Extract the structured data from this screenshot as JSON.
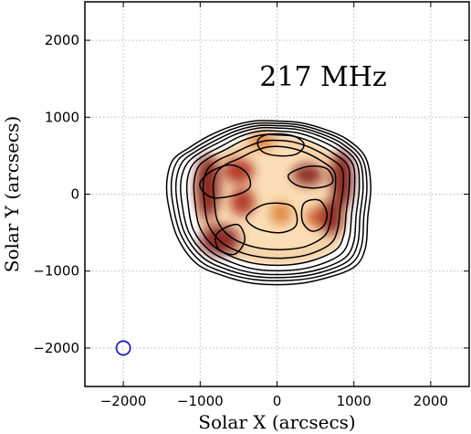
{
  "chart_data": {
    "type": "heatmap",
    "title": "",
    "annotation": "217 MHz",
    "xlabel": "Solar X (arcsecs)",
    "ylabel": "Solar Y (arcsecs)",
    "xlim": [
      -2500,
      2500
    ],
    "ylim": [
      -2500,
      2500
    ],
    "x_ticks": [
      -2000,
      -1000,
      0,
      1000,
      2000
    ],
    "y_ticks": [
      -2000,
      -1000,
      0,
      1000,
      2000
    ],
    "x_tick_labels": [
      "−2000",
      "−1000",
      "0",
      "1000",
      "2000"
    ],
    "y_tick_labels": [
      "−2000",
      "−1000",
      "0",
      "1000",
      "2000"
    ],
    "grid": true,
    "colormap": "gist_heat_r",
    "contour_color": "#000000",
    "beam": {
      "x": -2000,
      "y": -2000,
      "radius": 90,
      "color": "#1f1fcc"
    },
    "emission_peaks": [
      {
        "x": -900,
        "y": 100,
        "w": 160,
        "h": 420,
        "level": 1.0
      },
      {
        "x": -750,
        "y": -600,
        "w": 260,
        "h": 200,
        "level": 1.0
      },
      {
        "x": -500,
        "y": 300,
        "w": 200,
        "h": 160,
        "level": 0.85
      },
      {
        "x": -450,
        "y": -100,
        "w": 160,
        "h": 180,
        "level": 0.9
      },
      {
        "x": 400,
        "y": 250,
        "w": 200,
        "h": 140,
        "level": 0.95
      },
      {
        "x": 850,
        "y": 200,
        "w": 150,
        "h": 380,
        "level": 1.0
      },
      {
        "x": 700,
        "y": -300,
        "w": 160,
        "h": 220,
        "level": 0.95
      },
      {
        "x": 500,
        "y": -300,
        "w": 120,
        "h": 120,
        "level": 0.8
      },
      {
        "x": 50,
        "y": -250,
        "w": 140,
        "h": 140,
        "level": 0.7
      },
      {
        "x": -200,
        "y": 700,
        "w": 160,
        "h": 120,
        "level": 0.6
      }
    ],
    "contours": [
      [
        [
          -1420,
          -100
        ],
        [
          -1430,
          200
        ],
        [
          -1350,
          450
        ],
        [
          -1150,
          600
        ],
        [
          -900,
          750
        ],
        [
          -600,
          880
        ],
        [
          -300,
          950
        ],
        [
          0,
          950
        ],
        [
          300,
          930
        ],
        [
          600,
          850
        ],
        [
          900,
          720
        ],
        [
          1150,
          480
        ],
        [
          1220,
          100
        ],
        [
          1180,
          -300
        ],
        [
          1150,
          -700
        ],
        [
          1000,
          -950
        ],
        [
          600,
          -1100
        ],
        [
          200,
          -1170
        ],
        [
          -300,
          -1160
        ],
        [
          -700,
          -1060
        ],
        [
          -1050,
          -900
        ],
        [
          -1300,
          -550
        ]
      ],
      [
        [
          -1360,
          -100
        ],
        [
          -1370,
          200
        ],
        [
          -1290,
          440
        ],
        [
          -1100,
          580
        ],
        [
          -860,
          720
        ],
        [
          -570,
          850
        ],
        [
          -280,
          920
        ],
        [
          0,
          920
        ],
        [
          290,
          900
        ],
        [
          580,
          820
        ],
        [
          870,
          690
        ],
        [
          1110,
          460
        ],
        [
          1170,
          100
        ],
        [
          1130,
          -290
        ],
        [
          1100,
          -670
        ],
        [
          960,
          -910
        ],
        [
          580,
          -1060
        ],
        [
          190,
          -1120
        ],
        [
          -290,
          -1110
        ],
        [
          -680,
          -1020
        ],
        [
          -1010,
          -860
        ],
        [
          -1250,
          -530
        ]
      ],
      [
        [
          -1300,
          -100
        ],
        [
          -1310,
          190
        ],
        [
          -1230,
          420
        ],
        [
          -1050,
          560
        ],
        [
          -820,
          690
        ],
        [
          -540,
          820
        ],
        [
          -260,
          890
        ],
        [
          0,
          890
        ],
        [
          280,
          870
        ],
        [
          560,
          790
        ],
        [
          840,
          660
        ],
        [
          1070,
          440
        ],
        [
          1120,
          100
        ],
        [
          1080,
          -280
        ],
        [
          1050,
          -640
        ],
        [
          920,
          -870
        ],
        [
          560,
          -1020
        ],
        [
          180,
          -1080
        ],
        [
          -280,
          -1070
        ],
        [
          -650,
          -980
        ],
        [
          -970,
          -820
        ],
        [
          -1200,
          -510
        ]
      ],
      [
        [
          -1240,
          -100
        ],
        [
          -1250,
          180
        ],
        [
          -1170,
          400
        ],
        [
          -1000,
          540
        ],
        [
          -780,
          660
        ],
        [
          -510,
          790
        ],
        [
          -240,
          860
        ],
        [
          0,
          860
        ],
        [
          270,
          840
        ],
        [
          540,
          760
        ],
        [
          810,
          630
        ],
        [
          1030,
          420
        ],
        [
          1070,
          100
        ],
        [
          1030,
          -270
        ],
        [
          1000,
          -610
        ],
        [
          880,
          -830
        ],
        [
          540,
          -980
        ],
        [
          170,
          -1040
        ],
        [
          -270,
          -1030
        ],
        [
          -620,
          -940
        ],
        [
          -930,
          -780
        ],
        [
          -1150,
          -490
        ]
      ],
      [
        [
          -1160,
          -100
        ],
        [
          -1170,
          170
        ],
        [
          -1100,
          380
        ],
        [
          -940,
          510
        ],
        [
          -730,
          620
        ],
        [
          -480,
          750
        ],
        [
          -220,
          820
        ],
        [
          0,
          820
        ],
        [
          250,
          800
        ],
        [
          510,
          720
        ],
        [
          770,
          590
        ],
        [
          980,
          400
        ],
        [
          1010,
          100
        ],
        [
          970,
          -260
        ],
        [
          940,
          -570
        ],
        [
          830,
          -780
        ],
        [
          510,
          -930
        ],
        [
          160,
          -990
        ],
        [
          -250,
          -980
        ],
        [
          -580,
          -890
        ],
        [
          -880,
          -730
        ],
        [
          -1090,
          -460
        ]
      ],
      [
        [
          -1070,
          -80
        ],
        [
          -1080,
          160
        ],
        [
          -1020,
          360
        ],
        [
          -870,
          480
        ],
        [
          -670,
          580
        ],
        [
          -440,
          700
        ],
        [
          -200,
          770
        ],
        [
          0,
          770
        ],
        [
          230,
          750
        ],
        [
          470,
          670
        ],
        [
          720,
          540
        ],
        [
          920,
          370
        ],
        [
          940,
          100
        ],
        [
          900,
          -240
        ],
        [
          870,
          -520
        ],
        [
          770,
          -720
        ],
        [
          470,
          -860
        ],
        [
          140,
          -920
        ],
        [
          -230,
          -910
        ],
        [
          -540,
          -830
        ],
        [
          -820,
          -680
        ],
        [
          -1010,
          -420
        ]
      ],
      [
        [
          -950,
          -60
        ],
        [
          -960,
          150
        ],
        [
          -900,
          330
        ],
        [
          -770,
          440
        ],
        [
          -590,
          520
        ],
        [
          -380,
          620
        ],
        [
          -170,
          690
        ],
        [
          0,
          700
        ],
        [
          200,
          680
        ],
        [
          420,
          610
        ],
        [
          650,
          490
        ],
        [
          840,
          340
        ],
        [
          860,
          100
        ],
        [
          820,
          -200
        ],
        [
          790,
          -450
        ],
        [
          700,
          -640
        ],
        [
          420,
          -780
        ],
        [
          120,
          -830
        ],
        [
          -200,
          -820
        ],
        [
          -490,
          -750
        ],
        [
          -740,
          -610
        ],
        [
          -900,
          -380
        ]
      ],
      [
        [
          -820,
          -40
        ],
        [
          -830,
          130
        ],
        [
          -780,
          290
        ],
        [
          -660,
          390
        ],
        [
          -500,
          460
        ],
        [
          -320,
          550
        ],
        [
          -140,
          610
        ],
        [
          0,
          620
        ],
        [
          180,
          600
        ],
        [
          370,
          540
        ],
        [
          580,
          430
        ],
        [
          740,
          300
        ],
        [
          760,
          100
        ],
        [
          720,
          -160
        ],
        [
          690,
          -380
        ],
        [
          610,
          -550
        ],
        [
          370,
          -680
        ],
        [
          100,
          -720
        ],
        [
          -170,
          -710
        ],
        [
          -420,
          -650
        ],
        [
          -640,
          -530
        ],
        [
          -780,
          -330
        ]
      ],
      [
        [
          -1000,
          150
        ],
        [
          -850,
          300
        ],
        [
          -600,
          380
        ],
        [
          -400,
          280
        ],
        [
          -350,
          100
        ],
        [
          -500,
          0
        ],
        [
          -800,
          -50
        ],
        [
          -950,
          20
        ]
      ],
      [
        [
          -250,
          700
        ],
        [
          -100,
          780
        ],
        [
          200,
          760
        ],
        [
          350,
          650
        ],
        [
          250,
          520
        ],
        [
          0,
          500
        ],
        [
          -200,
          560
        ]
      ],
      [
        [
          -300,
          -200
        ],
        [
          -100,
          -120
        ],
        [
          200,
          -160
        ],
        [
          250,
          -400
        ],
        [
          50,
          -500
        ],
        [
          -250,
          -450
        ],
        [
          -400,
          -320
        ]
      ],
      [
        [
          350,
          -120
        ],
        [
          550,
          -80
        ],
        [
          650,
          -250
        ],
        [
          600,
          -420
        ],
        [
          450,
          -480
        ],
        [
          330,
          -350
        ]
      ],
      [
        [
          150,
          250
        ],
        [
          400,
          360
        ],
        [
          650,
          330
        ],
        [
          720,
          150
        ],
        [
          500,
          80
        ],
        [
          250,
          120
        ]
      ],
      [
        [
          -700,
          -450
        ],
        [
          -500,
          -400
        ],
        [
          -420,
          -600
        ],
        [
          -550,
          -780
        ],
        [
          -750,
          -720
        ],
        [
          -800,
          -560
        ]
      ]
    ]
  }
}
